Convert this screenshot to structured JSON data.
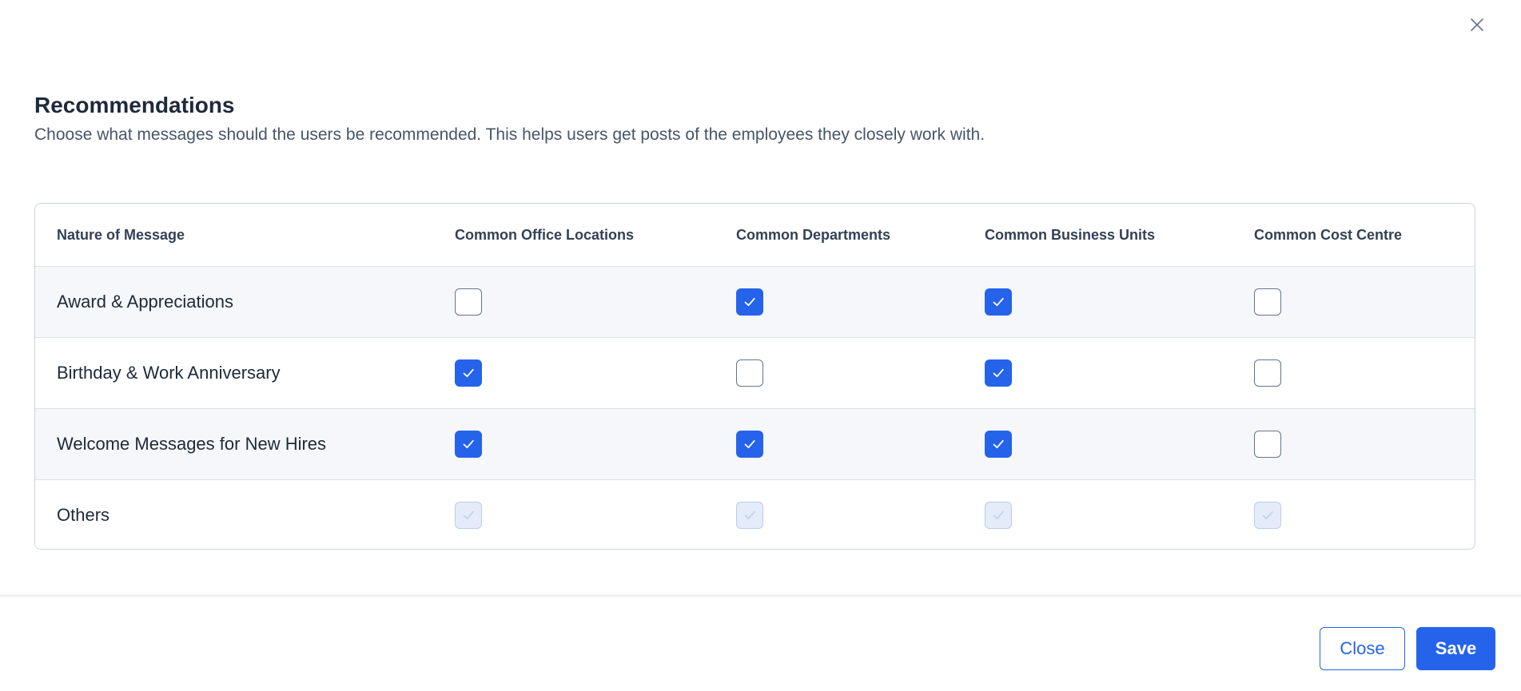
{
  "dialog": {
    "title": "Recommendations",
    "description": "Choose what messages should the users be recommended. This helps users get posts of the employees they closely work with."
  },
  "table": {
    "columns": [
      "Nature of Message",
      "Common Office Locations",
      "Common Departments",
      "Common Business Units",
      "Common Cost Centre"
    ],
    "rows": [
      {
        "label": "Award & Appreciations",
        "values": [
          false,
          true,
          true,
          false
        ],
        "disabled": false
      },
      {
        "label": "Birthday & Work Anniversary",
        "values": [
          true,
          false,
          true,
          false
        ],
        "disabled": false
      },
      {
        "label": "Welcome Messages for New Hires",
        "values": [
          true,
          true,
          true,
          false
        ],
        "disabled": false
      },
      {
        "label": "Others",
        "values": [
          true,
          true,
          true,
          true
        ],
        "disabled": true
      }
    ]
  },
  "footer": {
    "close_label": "Close",
    "save_label": "Save"
  },
  "colors": {
    "accent": "#2563eb",
    "checkbox_disabled": "#e4ecfa"
  },
  "icons": {
    "dismiss": "close-icon",
    "check": "checkmark-icon"
  }
}
